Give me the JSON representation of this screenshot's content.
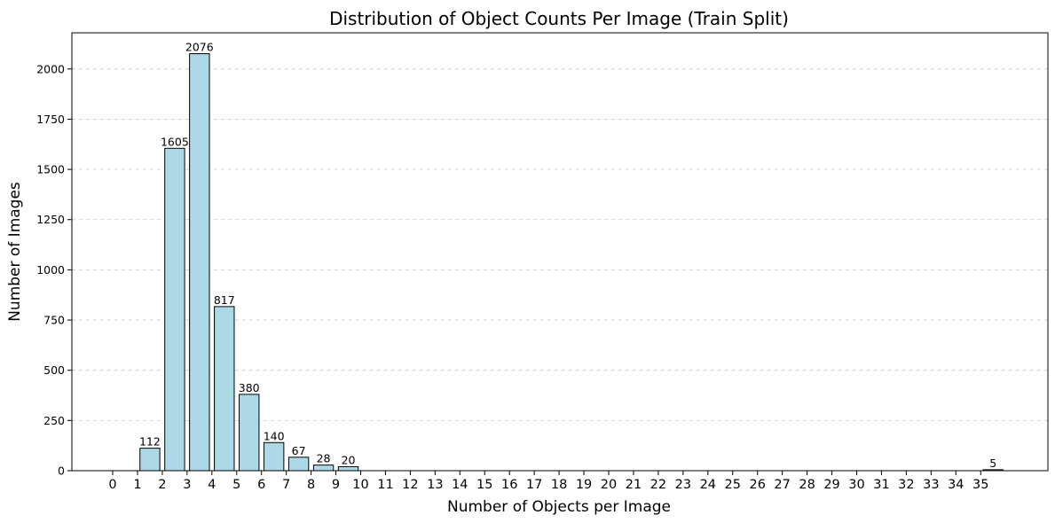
{
  "chart_data": {
    "type": "bar",
    "title": "Distribution of Object Counts Per Image (Train Split)",
    "xlabel": "Number of Objects per Image",
    "ylabel": "Number of Images",
    "x_ticks": [
      "0",
      "1",
      "2",
      "3",
      "4",
      "5",
      "6",
      "7",
      "8",
      "9",
      "10",
      "11",
      "12",
      "13",
      "14",
      "15",
      "16",
      "17",
      "18",
      "19",
      "20",
      "21",
      "22",
      "23",
      "24",
      "25",
      "26",
      "27",
      "28",
      "29",
      "30",
      "31",
      "32",
      "33",
      "34",
      "35"
    ],
    "categories": [
      "1",
      "2",
      "3",
      "4",
      "5",
      "6",
      "7",
      "8",
      "9",
      "35"
    ],
    "values": [
      112,
      1605,
      2076,
      817,
      380,
      140,
      67,
      28,
      20,
      5
    ],
    "data_labels": [
      "112",
      "1605",
      "2076",
      "817",
      "380",
      "140",
      "67",
      "28",
      "20",
      "5"
    ],
    "y_ticks": [
      0,
      250,
      500,
      750,
      1000,
      1250,
      1500,
      1750,
      2000
    ],
    "ylim": [
      0,
      2180
    ],
    "grid": "y-dashed",
    "bar_color": "#add8e6",
    "bar_edge_color": "#000000",
    "legend": "none"
  }
}
